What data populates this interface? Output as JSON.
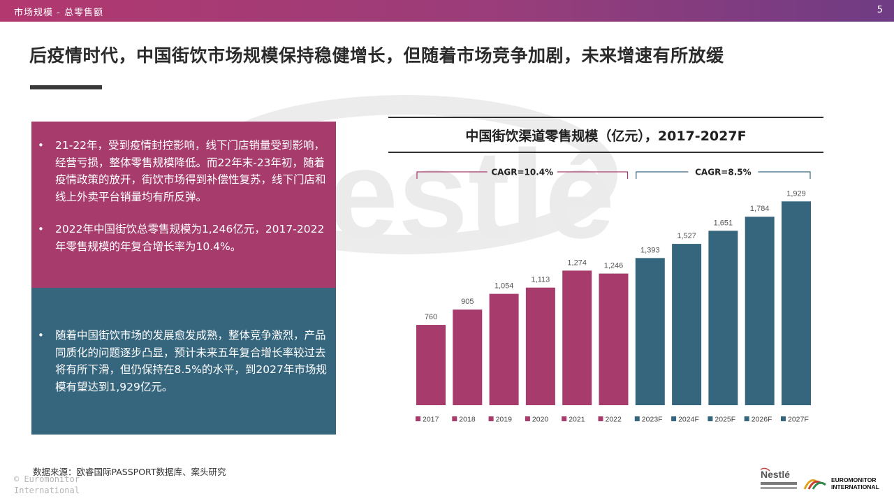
{
  "header": {
    "section": "市场规模 - 总零售额",
    "page_number": "5"
  },
  "headline": "后疫情时代，中国街饮市场规模保持稳健增长，但随着市场竞争加剧，未来增速有所放缓",
  "left_panel": {
    "top_bullets": [
      "21-22年，受到疫情封控影响，线下门店销量受到影响，经营亏损，整体零售规模降低。而22年末-23年初，随着疫情政策的放开，街饮市场得到补偿性复苏，线下门店和线上外卖平台销量均有所反弹。",
      "2022年中国街饮总零售规模为1,246亿元，2017-2022年零售规模的年复合增长率为10.4%。"
    ],
    "bottom_bullets": [
      "随着中国街饮市场的发展愈发成熟，整体竞争激烈，产品同质化的问题逐步凸显，预计未来五年复合增长率较过去将有所下滑，但仍保持在8.5%的水平，到2027年市场规模有望达到1,929亿元。"
    ]
  },
  "chart_title": "中国街饮渠道零售规模（亿元），2017-2027F",
  "chart_data": {
    "type": "bar",
    "title": "中国街饮渠道零售规模（亿元），2017-2027F",
    "categories": [
      "2017",
      "2018",
      "2019",
      "2020",
      "2021",
      "2022",
      "2023F",
      "2024F",
      "2025F",
      "2026F",
      "2027F"
    ],
    "values": [
      760,
      905,
      1054,
      1113,
      1274,
      1246,
      1393,
      1527,
      1651,
      1784,
      1929
    ],
    "value_labels": [
      "760",
      "905",
      "1,054",
      "1,113",
      "1,274",
      "1,246",
      "1,393",
      "1,527",
      "1,651",
      "1,784",
      "1,929"
    ],
    "forecast_from_index": 6,
    "ylim": [
      0,
      2050
    ],
    "grid": false,
    "legend": "bottom",
    "annotations": [
      {
        "text": "CAGR=10.4%",
        "from_category": "2017",
        "to_category": "2022"
      },
      {
        "text": "CAGR=8.5%",
        "from_category": "2023F",
        "to_category": "2027F"
      }
    ],
    "colors": {
      "historical": "#a63b6c",
      "forecast": "#36667e"
    }
  },
  "footer": {
    "source": "数据来源：欧睿国际PASSPORT数据库、案头研究",
    "copyright_line1": "© Euromonitor",
    "copyright_line2": "International",
    "euromonitor_line1": "EUROMONITOR",
    "euromonitor_line2": "INTERNATIONAL",
    "nestle_logo_text": "Nestlé"
  },
  "watermark_text": "Nestlé"
}
